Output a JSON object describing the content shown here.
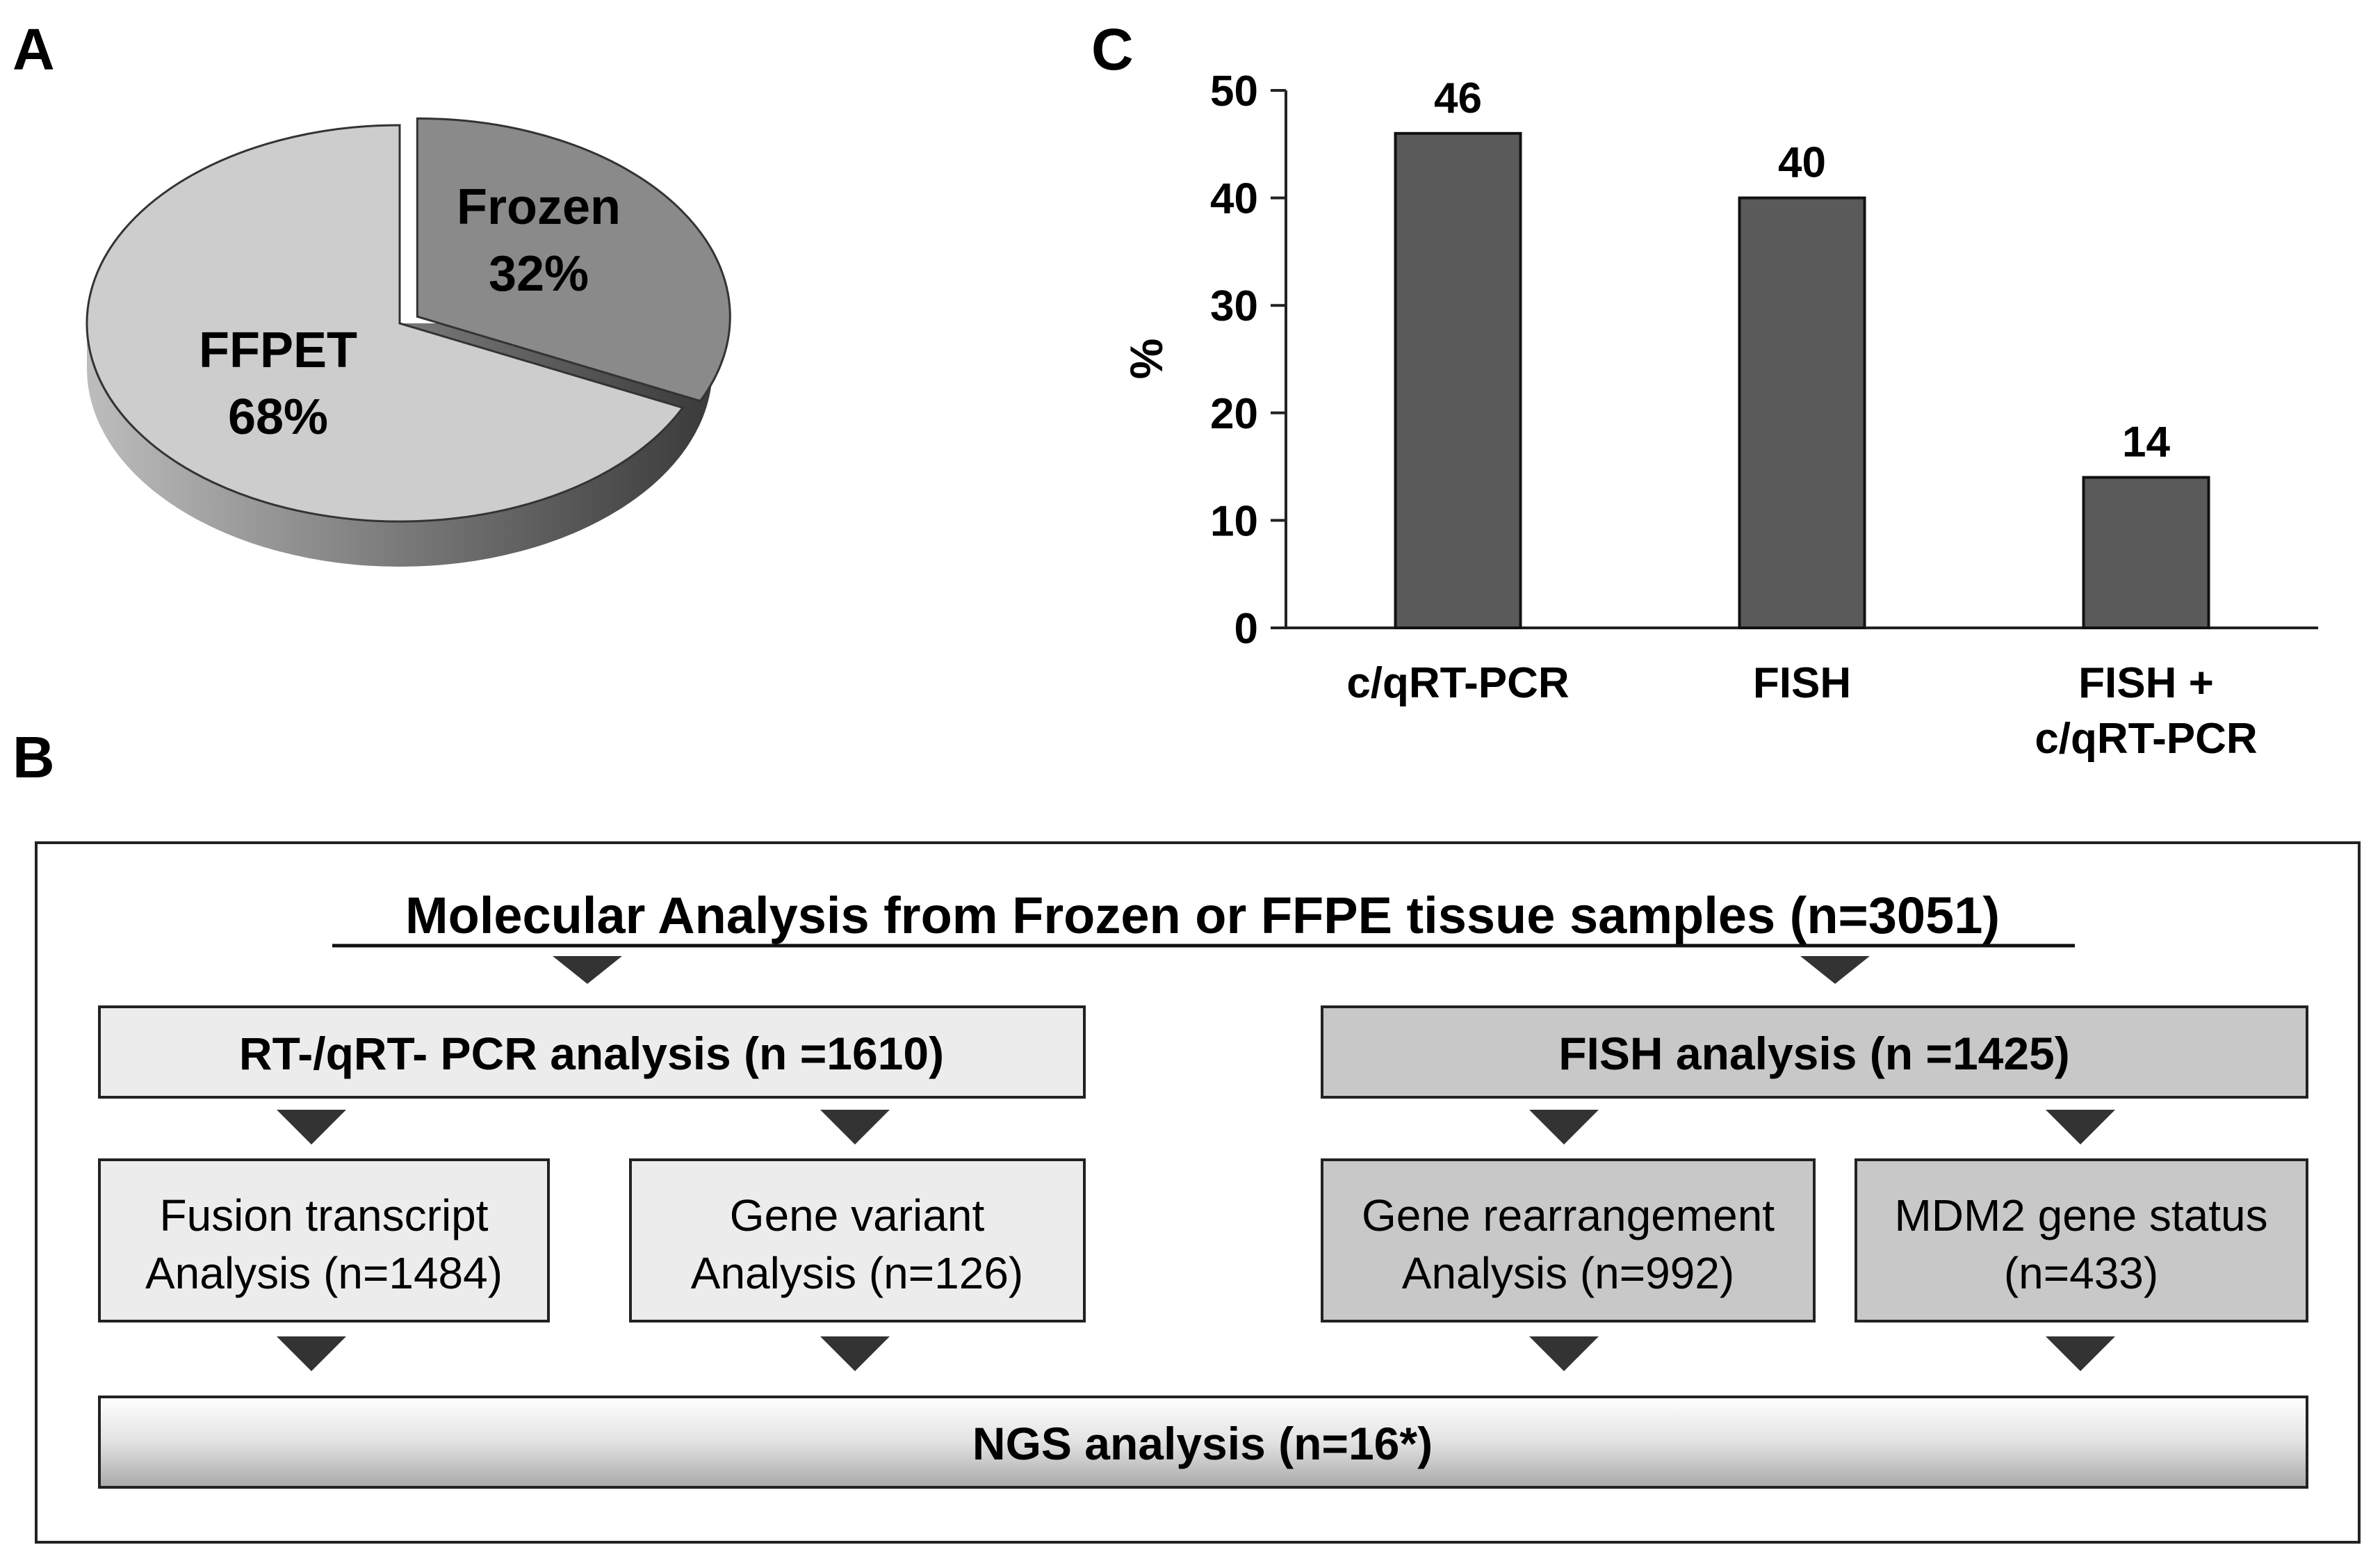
{
  "panels": {
    "a_label": "A",
    "b_label": "B",
    "c_label": "C"
  },
  "chart_data": [
    {
      "type": "pie",
      "categories": [
        "Frozen",
        "FFPET"
      ],
      "values": [
        32,
        68
      ],
      "labels": [
        "32%",
        "68%"
      ],
      "colors": [
        "#8a8a8a",
        "#cdcdcd"
      ],
      "title": ""
    },
    {
      "type": "bar",
      "categories": [
        "c/qRT-PCR",
        "FISH",
        "FISH + c/qRT-PCR"
      ],
      "category_lines": [
        [
          "c/qRT-PCR"
        ],
        [
          "FISH"
        ],
        [
          "FISH +",
          "c/qRT-PCR"
        ]
      ],
      "values": [
        46,
        40,
        14
      ],
      "value_labels": [
        "46",
        "40",
        "14"
      ],
      "ylabel": "%",
      "xlabel": "",
      "ylim": [
        0,
        50
      ],
      "yticks": [
        0,
        10,
        20,
        30,
        40,
        50
      ],
      "color": "#5a5a5a",
      "grid": false,
      "title": ""
    }
  ],
  "flowchart": {
    "title": "Molecular Analysis from Frozen or FFPE tissue samples (n=3051)",
    "rt_pcr": "RT-/qRT- PCR analysis (n =1610)",
    "fish": "FISH analysis (n =1425)",
    "fusion": [
      "Fusion transcript",
      "Analysis (n=1484)"
    ],
    "variant": [
      "Gene variant",
      "Analysis (n=126)"
    ],
    "rearrangement": [
      "Gene rearrangement",
      "Analysis (n=992)"
    ],
    "mdm2": [
      "MDM2 gene status",
      "(n=433)"
    ],
    "ngs": "NGS analysis (n=16*)"
  }
}
